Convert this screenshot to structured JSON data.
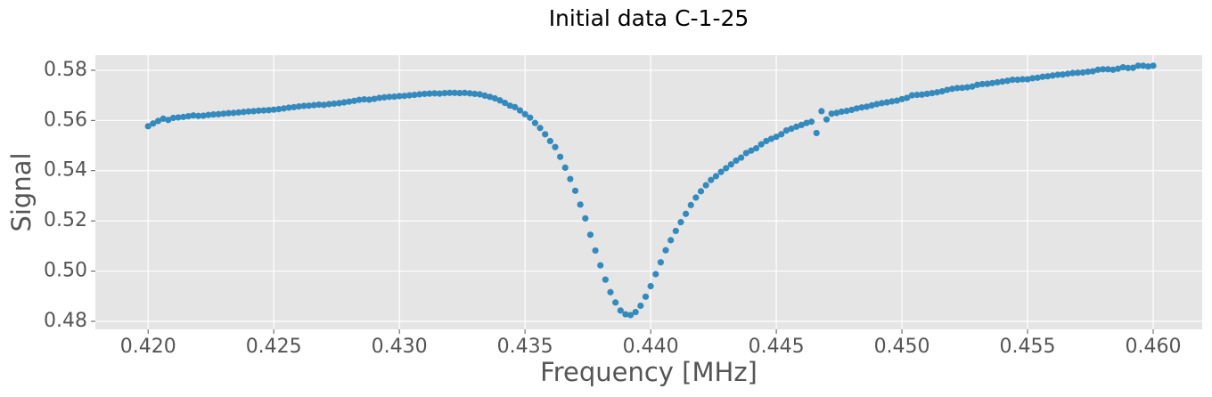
{
  "chart_data": {
    "type": "scatter",
    "title": "Initial data C-1-25",
    "xlabel": "Frequency [MHz]",
    "ylabel": "Signal",
    "color": "#348abd",
    "grid": true,
    "x": [
      0.42,
      0.4202,
      0.4204,
      0.4206,
      0.4208,
      0.421,
      0.4212,
      0.4214,
      0.4216,
      0.4218,
      0.422,
      0.4222,
      0.4224,
      0.4226,
      0.4228,
      0.423,
      0.4232,
      0.4234,
      0.4236,
      0.4238,
      0.424,
      0.4242,
      0.4244,
      0.4246,
      0.4248,
      0.425,
      0.4252,
      0.4254,
      0.4256,
      0.4258,
      0.426,
      0.4262,
      0.4264,
      0.4266,
      0.4268,
      0.427,
      0.4272,
      0.4274,
      0.4276,
      0.4278,
      0.428,
      0.4282,
      0.4284,
      0.4286,
      0.4288,
      0.429,
      0.4292,
      0.4294,
      0.4296,
      0.4298,
      0.43,
      0.4302,
      0.4304,
      0.4306,
      0.4308,
      0.431,
      0.4312,
      0.4314,
      0.4316,
      0.4318,
      0.432,
      0.4322,
      0.4324,
      0.4326,
      0.4328,
      0.433,
      0.4332,
      0.4334,
      0.4336,
      0.4338,
      0.434,
      0.4342,
      0.4344,
      0.4346,
      0.4348,
      0.435,
      0.4352,
      0.4354,
      0.4356,
      0.4358,
      0.436,
      0.4362,
      0.4364,
      0.4366,
      0.4368,
      0.437,
      0.4372,
      0.4374,
      0.4376,
      0.4378,
      0.438,
      0.4382,
      0.4384,
      0.4386,
      0.4388,
      0.439,
      0.4392,
      0.4394,
      0.4396,
      0.4398,
      0.44,
      0.4402,
      0.4404,
      0.4406,
      0.4408,
      0.441,
      0.4412,
      0.4414,
      0.4416,
      0.4418,
      0.442,
      0.4422,
      0.4424,
      0.4426,
      0.4428,
      0.443,
      0.4432,
      0.4434,
      0.4436,
      0.4438,
      0.444,
      0.4442,
      0.4444,
      0.4446,
      0.4448,
      0.445,
      0.4452,
      0.4454,
      0.4456,
      0.4458,
      0.446,
      0.4462,
      0.4464,
      0.4466,
      0.4468,
      0.447,
      0.4472,
      0.4474,
      0.4476,
      0.4478,
      0.448,
      0.4482,
      0.4484,
      0.4486,
      0.4488,
      0.449,
      0.4492,
      0.4494,
      0.4496,
      0.4498,
      0.45,
      0.4502,
      0.4504,
      0.4506,
      0.4508,
      0.451,
      0.4512,
      0.4514,
      0.4516,
      0.4518,
      0.452,
      0.4522,
      0.4524,
      0.4526,
      0.4528,
      0.453,
      0.4532,
      0.4534,
      0.4536,
      0.4538,
      0.454,
      0.4542,
      0.4544,
      0.4546,
      0.4548,
      0.455,
      0.4552,
      0.4554,
      0.4556,
      0.4558,
      0.456,
      0.4562,
      0.4564,
      0.4566,
      0.4568,
      0.457,
      0.4572,
      0.4574,
      0.4576,
      0.4578,
      0.458,
      0.4582,
      0.4584,
      0.4586,
      0.4588,
      0.459,
      0.4592,
      0.4594,
      0.4596,
      0.4598,
      0.46
    ],
    "values": [
      0.5577,
      0.5588,
      0.5598,
      0.5607,
      0.5602,
      0.561,
      0.5612,
      0.5614,
      0.5617,
      0.562,
      0.5618,
      0.5619,
      0.5622,
      0.5624,
      0.5625,
      0.5627,
      0.5629,
      0.563,
      0.5632,
      0.5634,
      0.5636,
      0.5637,
      0.5639,
      0.564,
      0.5641,
      0.5643,
      0.5645,
      0.5648,
      0.5651,
      0.5653,
      0.5656,
      0.5658,
      0.5659,
      0.5661,
      0.5663,
      0.5662,
      0.5665,
      0.5667,
      0.5669,
      0.5672,
      0.5675,
      0.5678,
      0.5682,
      0.5684,
      0.5683,
      0.5686,
      0.569,
      0.5692,
      0.5694,
      0.5695,
      0.5697,
      0.5698,
      0.57,
      0.5702,
      0.5704,
      0.5706,
      0.5707,
      0.5708,
      0.5707,
      0.5709,
      0.571,
      0.571,
      0.5709,
      0.571,
      0.5708,
      0.5706,
      0.5704,
      0.5699,
      0.5694,
      0.5688,
      0.568,
      0.567,
      0.5659,
      0.5653,
      0.564,
      0.5625,
      0.5611,
      0.559,
      0.557,
      0.5545,
      0.5518,
      0.5494,
      0.5455,
      0.5412,
      0.5367,
      0.532,
      0.5265,
      0.521,
      0.5145,
      0.5082,
      0.5023,
      0.4966,
      0.4916,
      0.4875,
      0.4843,
      0.4828,
      0.4825,
      0.4837,
      0.4862,
      0.4898,
      0.494,
      0.4988,
      0.5035,
      0.5083,
      0.5123,
      0.516,
      0.5195,
      0.5228,
      0.5263,
      0.5293,
      0.5318,
      0.5342,
      0.5363,
      0.5378,
      0.5395,
      0.541,
      0.5425,
      0.544,
      0.5452,
      0.547,
      0.548,
      0.5489,
      0.5505,
      0.5518,
      0.5527,
      0.5535,
      0.5545,
      0.556,
      0.5567,
      0.5575,
      0.5582,
      0.559,
      0.5595,
      0.555,
      0.5637,
      0.5604,
      0.5627,
      0.563,
      0.5635,
      0.5638,
      0.5642,
      0.5648,
      0.5652,
      0.5655,
      0.566,
      0.5665,
      0.5669,
      0.5672,
      0.5676,
      0.5679,
      0.5685,
      0.569,
      0.57,
      0.5702,
      0.5703,
      0.5706,
      0.5709,
      0.5712,
      0.5716,
      0.5722,
      0.5726,
      0.5729,
      0.573,
      0.5732,
      0.5735,
      0.5742,
      0.5745,
      0.5746,
      0.5749,
      0.5752,
      0.5755,
      0.5758,
      0.5762,
      0.5762,
      0.5764,
      0.5764,
      0.5768,
      0.577,
      0.5774,
      0.5776,
      0.5779,
      0.5782,
      0.5783,
      0.5786,
      0.5789,
      0.579,
      0.5791,
      0.5794,
      0.5796,
      0.5802,
      0.5804,
      0.5804,
      0.5802,
      0.5806,
      0.5812,
      0.5809,
      0.581,
      0.5818,
      0.5818,
      0.5815,
      0.5818
    ],
    "xlim": [
      0.4179,
      0.46195
    ],
    "ylim": [
      0.4768,
      0.586
    ],
    "xticks": [
      {
        "value": 0.42,
        "label": "0.420"
      },
      {
        "value": 0.425,
        "label": "0.425"
      },
      {
        "value": 0.43,
        "label": "0.430"
      },
      {
        "value": 0.435,
        "label": "0.435"
      },
      {
        "value": 0.44,
        "label": "0.440"
      },
      {
        "value": 0.445,
        "label": "0.445"
      },
      {
        "value": 0.45,
        "label": "0.450"
      },
      {
        "value": 0.455,
        "label": "0.455"
      },
      {
        "value": 0.46,
        "label": "0.460"
      }
    ],
    "yticks": [
      0.48,
      {
        "value": 0.5,
        "label": "0.50"
      },
      0.52,
      0.54,
      0.56,
      0.58
    ]
  }
}
